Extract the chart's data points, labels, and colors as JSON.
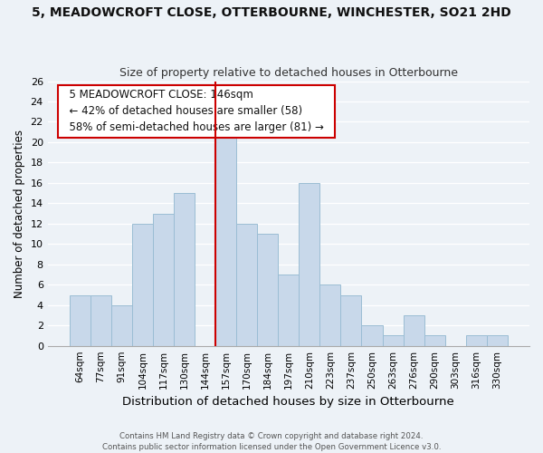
{
  "title": "5, MEADOWCROFT CLOSE, OTTERBOURNE, WINCHESTER, SO21 2HD",
  "subtitle": "Size of property relative to detached houses in Otterbourne",
  "xlabel": "Distribution of detached houses by size in Otterbourne",
  "ylabel": "Number of detached properties",
  "bar_color": "#c8d8ea",
  "bar_edge_color": "#9bbdd4",
  "bins": [
    "64sqm",
    "77sqm",
    "91sqm",
    "104sqm",
    "117sqm",
    "130sqm",
    "144sqm",
    "157sqm",
    "170sqm",
    "184sqm",
    "197sqm",
    "210sqm",
    "223sqm",
    "237sqm",
    "250sqm",
    "263sqm",
    "276sqm",
    "290sqm",
    "303sqm",
    "316sqm",
    "330sqm"
  ],
  "values": [
    5,
    5,
    4,
    12,
    13,
    15,
    0,
    21,
    12,
    11,
    7,
    16,
    6,
    5,
    2,
    1,
    3,
    1,
    0,
    1,
    1
  ],
  "vline_color": "#cc0000",
  "ylim": [
    0,
    26
  ],
  "yticks": [
    0,
    2,
    4,
    6,
    8,
    10,
    12,
    14,
    16,
    18,
    20,
    22,
    24,
    26
  ],
  "annotation_title": "5 MEADOWCROFT CLOSE: 146sqm",
  "annotation_line1": "← 42% of detached houses are smaller (58)",
  "annotation_line2": "58% of semi-detached houses are larger (81) →",
  "annotation_box_color": "#ffffff",
  "annotation_box_edge_color": "#cc0000",
  "footer_line1": "Contains HM Land Registry data © Crown copyright and database right 2024.",
  "footer_line2": "Contains public sector information licensed under the Open Government Licence v3.0.",
  "background_color": "#edf2f7",
  "grid_color": "#ffffff",
  "title_fontsize": 10,
  "subtitle_fontsize": 9,
  "ylabel_fontsize": 8.5,
  "xlabel_fontsize": 9.5
}
